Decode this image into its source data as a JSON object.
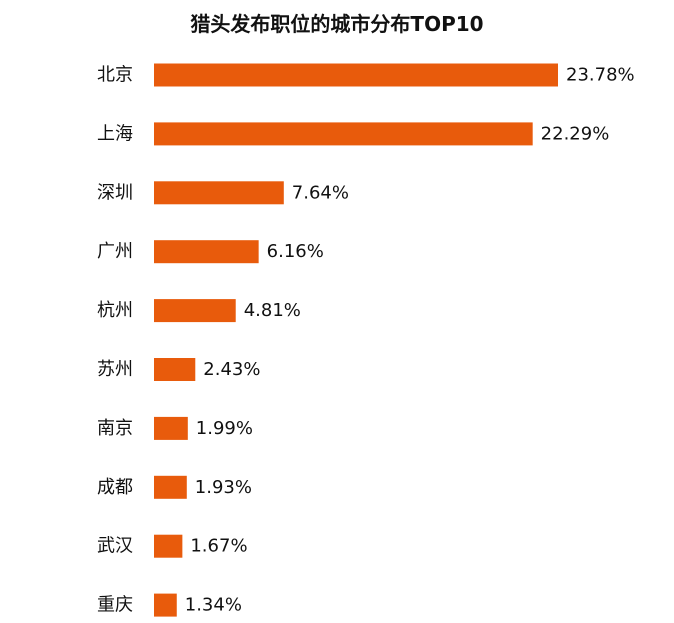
{
  "chart_data": {
    "type": "bar",
    "orientation": "horizontal",
    "title": "猎头发布职位的城市分布TOP10",
    "categories": [
      "北京",
      "上海",
      "深圳",
      "广州",
      "杭州",
      "苏州",
      "南京",
      "成都",
      "武汉",
      "重庆"
    ],
    "values": [
      23.78,
      22.29,
      7.64,
      6.16,
      4.81,
      2.43,
      1.99,
      1.93,
      1.67,
      1.34
    ],
    "value_labels": [
      "23.78%",
      "22.29%",
      "7.64%",
      "6.16%",
      "4.81%",
      "2.43%",
      "1.99%",
      "1.93%",
      "1.67%",
      "1.34%"
    ],
    "unit": "%",
    "xlim": [
      0,
      23.78
    ],
    "bar_color": "#E85B0C",
    "grid": false,
    "legend": "none"
  }
}
